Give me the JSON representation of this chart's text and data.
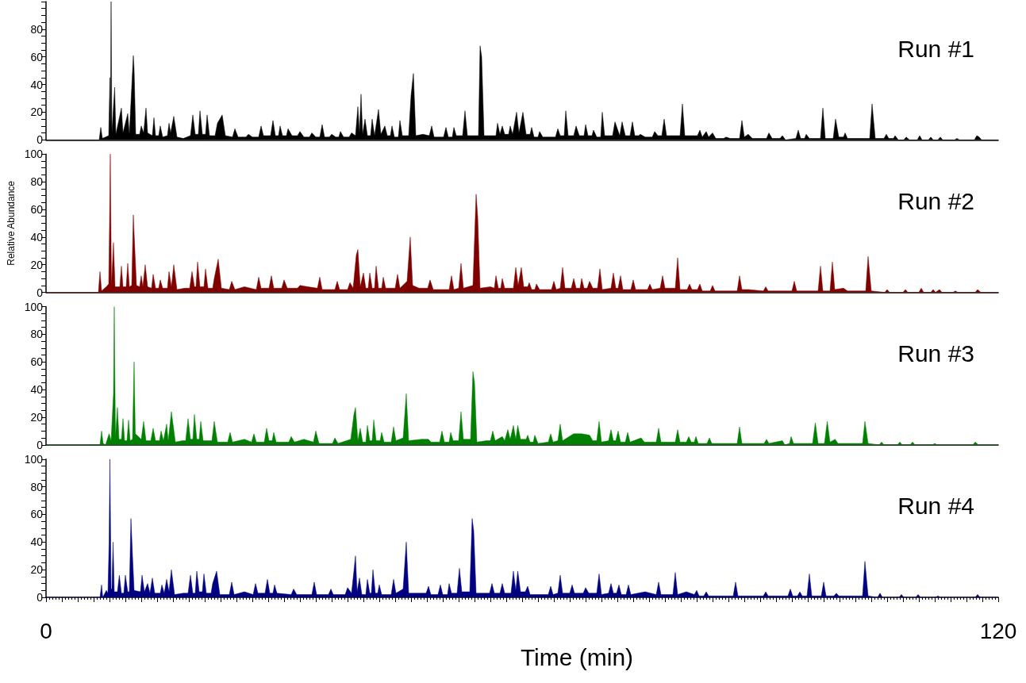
{
  "chart_data": [
    {
      "type": "area",
      "xlim": [
        0,
        120
      ],
      "ylim": [
        0,
        100
      ],
      "tick_labels": "y",
      "yticks": [
        0,
        {
          "value": 5,
          "label": null
        },
        {
          "value": 10,
          "label": null
        },
        {
          "value": 15,
          "label": null
        },
        20,
        {
          "value": 25,
          "label": null
        },
        {
          "value": 30,
          "label": null
        },
        {
          "value": 35,
          "label": null
        },
        40,
        {
          "value": 45,
          "label": null
        },
        {
          "value": 50,
          "label": null
        },
        {
          "value": 55,
          "label": null
        },
        60,
        {
          "value": 65,
          "label": null
        },
        {
          "value": 70,
          "label": null
        },
        {
          "value": 75,
          "label": null
        },
        80,
        {
          "value": 85,
          "label": null
        },
        {
          "value": 90,
          "label": null
        },
        {
          "value": 95,
          "label": null
        },
        {
          "value": 100,
          "label": null
        }
      ],
      "series": [
        {
          "name": "Run #1",
          "color": "#000000",
          "x": [
            0,
            6.7,
            6.9,
            7.1,
            7.9,
            8.05,
            8.12,
            8.2,
            8.3,
            8.65,
            8.8,
            9.5,
            9.7,
            10.3,
            10.5,
            11.0,
            11.1,
            11.3,
            11.8,
            12.0,
            12.3,
            12.6,
            12.8,
            13.4,
            13.6,
            13.8,
            14.2,
            14.4,
            14.7,
            15.3,
            15.5,
            15.7,
            16.1,
            16.5,
            17.3,
            18.2,
            18.5,
            18.8,
            19.2,
            19.4,
            19.7,
            20.1,
            20.3,
            20.6,
            21.3,
            21.6,
            22.2,
            22.6,
            23.5,
            23.8,
            24.2,
            25.2,
            25.5,
            26.0,
            26.8,
            27.1,
            27.4,
            28.3,
            28.6,
            28.9,
            29.3,
            29.5,
            29.8,
            30.3,
            30.5,
            31.0,
            31.7,
            32.0,
            32.5,
            33.2,
            33.5,
            34.0,
            34.5,
            34.8,
            35.1,
            35.7,
            36.0,
            36.5,
            36.9,
            37.1,
            37.5,
            38.2,
            38.5,
            39.0,
            39.3,
            39.5,
            39.7,
            39.9,
            40.2,
            40.5,
            40.9,
            41.1,
            41.4,
            41.9,
            42.2,
            42.7,
            43.0,
            43.4,
            43.6,
            43.9,
            44.4,
            44.6,
            44.9,
            45.7,
            46.0,
            46.3,
            46.6,
            47.5,
            48.3,
            48.6,
            48.9,
            50.1,
            50.4,
            50.7,
            51.2,
            51.4,
            51.7,
            52.5,
            52.8,
            53.1,
            54.0,
            54.5,
            54.7,
            54.9,
            55.2,
            56.2,
            56.7,
            56.9,
            57.2,
            57.5,
            57.8,
            58.3,
            58.5,
            58.8,
            59.3,
            59.6,
            60.1,
            60.5,
            61.0,
            61.2,
            61.5,
            62.0,
            62.2,
            62.6,
            64.2,
            64.5,
            64.8,
            65.3,
            65.5,
            65.8,
            66.5,
            66.8,
            67.2,
            67.8,
            68.0,
            68.3,
            68.8,
            69.0,
            69.4,
            69.9,
            70.1,
            70.4,
            71.4,
            71.7,
            72.3,
            72.6,
            73.0,
            73.6,
            73.9,
            74.2,
            74.7,
            74.9,
            75.5,
            76.4,
            76.7,
            77.1,
            77.6,
            77.9,
            78.2,
            79.9,
            80.2,
            80.5,
            82.1,
            82.4,
            82.7,
            83.2,
            83.5,
            84.0,
            84.4,
            85.4,
            85.7,
            86.2,
            87.4,
            87.7,
            88.0,
            88.5,
            89.0,
            90.8,
            91.1,
            91.5,
            92.5,
            92.8,
            93.2,
            94.5,
            94.8,
            95.1,
            95.6,
            95.8,
            96.2,
            97.6,
            97.9,
            98.2,
            99.2,
            99.5,
            99.9,
            100.5,
            100.7,
            101.0,
            103.8,
            104.1,
            104.5,
            105.6,
            105.9,
            106.2,
            106.8,
            107.0,
            107.4,
            108.1,
            108.4,
            108.8,
            109.8,
            110.1,
            110.4,
            111.2,
            111.5,
            111.8,
            112.4,
            112.7,
            113.0,
            114.5,
            114.8,
            115.1,
            117.0,
            117.3,
            117.6,
            117.9,
            120
          ],
          "values": [
            0,
            0,
            9,
            1,
            3,
            45,
            8,
            100,
            5,
            38,
            4,
            23,
            5,
            19,
            4,
            61,
            51,
            4,
            4,
            10,
            5,
            23,
            5,
            3,
            16,
            3,
            3,
            10,
            2,
            3,
            12,
            5,
            17,
            2,
            1,
            3,
            18,
            4,
            4,
            21,
            4,
            4,
            18,
            3,
            3,
            12,
            18,
            3,
            2,
            8,
            2,
            2,
            4,
            2,
            2,
            10,
            3,
            3,
            14,
            3,
            3,
            10,
            3,
            3,
            8,
            3,
            3,
            6,
            2,
            2,
            5,
            2,
            2,
            11,
            2,
            2,
            4,
            2,
            2,
            6,
            2,
            2,
            5,
            3,
            24,
            5,
            33,
            4,
            15,
            3,
            3,
            15,
            3,
            22,
            4,
            10,
            3,
            3,
            10,
            2,
            2,
            14,
            3,
            3,
            32,
            48,
            3,
            4,
            3,
            10,
            2,
            2,
            9,
            2,
            2,
            9,
            3,
            3,
            21,
            3,
            3,
            3,
            68,
            60,
            3,
            3,
            3,
            12,
            4,
            10,
            4,
            4,
            10,
            4,
            20,
            5,
            20,
            4,
            4,
            9,
            2,
            2,
            6,
            2,
            2,
            8,
            3,
            3,
            21,
            3,
            3,
            10,
            3,
            3,
            11,
            3,
            3,
            7,
            2,
            2,
            20,
            3,
            3,
            13,
            3,
            13,
            3,
            3,
            13,
            3,
            3,
            4,
            2,
            2,
            6,
            3,
            3,
            15,
            3,
            3,
            26,
            3,
            3,
            7,
            2,
            6,
            2,
            5,
            1,
            1,
            2,
            1,
            1,
            14,
            2,
            4,
            1,
            1,
            5,
            1,
            1,
            3,
            0,
            1,
            7,
            1,
            1,
            4,
            1,
            1,
            23,
            1,
            1,
            15,
            2,
            2,
            5,
            1,
            1,
            26,
            1,
            1,
            4,
            1,
            1,
            3,
            0,
            0,
            2,
            0,
            0,
            3,
            0,
            0,
            2,
            0,
            0,
            2,
            0,
            0,
            1,
            0,
            0,
            3,
            2,
            0,
            0
          ]
        }
      ]
    },
    {
      "type": "area",
      "xlim": [
        0,
        120
      ],
      "ylim": [
        0,
        100
      ],
      "tick_labels": "y",
      "ylabel": "Relative Abundance",
      "yticks": [
        0,
        {
          "value": 5,
          "label": null
        },
        {
          "value": 10,
          "label": null
        },
        {
          "value": 15,
          "label": null
        },
        20,
        {
          "value": 25,
          "label": null
        },
        {
          "value": 30,
          "label": null
        },
        {
          "value": 35,
          "label": null
        },
        40,
        {
          "value": 45,
          "label": null
        },
        {
          "value": 50,
          "label": null
        },
        {
          "value": 55,
          "label": null
        },
        60,
        {
          "value": 65,
          "label": null
        },
        {
          "value": 70,
          "label": null
        },
        {
          "value": 75,
          "label": null
        },
        80,
        {
          "value": 85,
          "label": null
        },
        {
          "value": 90,
          "label": null
        },
        {
          "value": 95,
          "label": null
        },
        100
      ],
      "series": [
        {
          "name": "Run #2",
          "color": "#800000",
          "x": [
            0,
            6.6,
            6.8,
            7.0,
            7.6,
            7.9,
            8.0,
            8.1,
            8.25,
            8.5,
            8.7,
            9.3,
            9.5,
            9.7,
            10.1,
            10.3,
            10.5,
            10.8,
            11.0,
            11.2,
            11.4,
            11.8,
            12.0,
            12.2,
            12.5,
            12.8,
            13.3,
            13.5,
            13.8,
            14.2,
            14.4,
            14.7,
            15.3,
            15.5,
            15.8,
            16.1,
            16.5,
            17.5,
            18.1,
            18.4,
            18.7,
            18.9,
            19.1,
            19.4,
            19.9,
            20.1,
            20.4,
            21.0,
            21.2,
            21.7,
            22.1,
            23.1,
            23.4,
            23.8,
            25.0,
            26.5,
            26.8,
            27.1,
            28.1,
            28.4,
            28.7,
            29.7,
            30.0,
            30.4,
            31.7,
            32.0,
            33.0,
            34.2,
            34.5,
            34.8,
            36.4,
            36.7,
            37.0,
            38.0,
            38.3,
            38.7,
            39.1,
            39.3,
            39.6,
            40.0,
            40.3,
            40.6,
            40.8,
            41.1,
            41.4,
            41.6,
            41.9,
            42.3,
            42.5,
            42.8,
            44.0,
            44.3,
            44.6,
            45.5,
            45.9,
            46.2,
            47.0,
            48.1,
            48.4,
            48.8,
            50.8,
            51.1,
            51.4,
            52.0,
            52.3,
            52.6,
            53.8,
            54.2,
            54.4,
            54.7,
            56.0,
            56.5,
            56.7,
            57.0,
            57.3,
            57.5,
            57.8,
            58.9,
            59.2,
            59.5,
            59.9,
            60.2,
            60.7,
            60.9,
            61.2,
            61.6,
            61.8,
            62.2,
            63.7,
            64.0,
            64.3,
            64.8,
            65.1,
            65.4,
            66.2,
            66.5,
            66.8,
            67.3,
            67.5,
            67.8,
            68.2,
            68.5,
            68.9,
            69.5,
            69.8,
            70.1,
            71.2,
            71.5,
            71.8,
            72.1,
            72.4,
            72.7,
            73.7,
            74.0,
            74.3,
            75.8,
            76.1,
            76.4,
            77.4,
            77.7,
            78.0,
            79.3,
            79.6,
            79.9,
            80.8,
            81.1,
            81.4,
            82.1,
            82.4,
            82.7,
            83.7,
            84.0,
            84.3,
            87.1,
            87.4,
            87.7,
            88.5,
            90.4,
            90.7,
            91.0,
            94.0,
            94.3,
            94.6,
            97.3,
            97.6,
            97.9,
            98.8,
            99.1,
            99.4,
            100.5,
            101.0,
            103.3,
            103.6,
            104.0,
            105.7,
            106.0,
            106.3,
            108.0,
            108.3,
            108.6,
            110.0,
            110.3,
            110.6,
            111.5,
            111.8,
            112.1,
            112.6,
            112.9,
            114.3,
            114.6,
            114.9,
            117.1,
            117.4,
            117.8,
            120
          ],
          "values": [
            0,
            0,
            15,
            1,
            4,
            6,
            48,
            100,
            5,
            36,
            4,
            4,
            19,
            4,
            4,
            21,
            4,
            5,
            56,
            30,
            5,
            4,
            12,
            4,
            20,
            4,
            3,
            13,
            3,
            3,
            9,
            3,
            3,
            15,
            4,
            20,
            2,
            3,
            3,
            15,
            4,
            4,
            22,
            4,
            4,
            17,
            3,
            3,
            10,
            24,
            3,
            2,
            8,
            2,
            4,
            2,
            11,
            3,
            3,
            12,
            3,
            3,
            9,
            3,
            3,
            5,
            4,
            3,
            11,
            2,
            2,
            8,
            2,
            2,
            7,
            3,
            27,
            31,
            4,
            14,
            3,
            3,
            14,
            3,
            3,
            19,
            3,
            3,
            11,
            3,
            3,
            13,
            3,
            8,
            40,
            5,
            3,
            3,
            9,
            2,
            2,
            12,
            2,
            3,
            21,
            3,
            5,
            71,
            55,
            3,
            4,
            3,
            12,
            3,
            3,
            10,
            3,
            3,
            18,
            5,
            18,
            4,
            4,
            7,
            2,
            2,
            6,
            2,
            2,
            8,
            2,
            3,
            18,
            3,
            3,
            10,
            3,
            3,
            10,
            3,
            3,
            8,
            3,
            3,
            17,
            2,
            3,
            14,
            3,
            3,
            12,
            2,
            2,
            9,
            2,
            2,
            6,
            2,
            3,
            12,
            3,
            3,
            25,
            2,
            2,
            6,
            2,
            2,
            6,
            1,
            1,
            5,
            1,
            1,
            12,
            2,
            2,
            1,
            4,
            1,
            1,
            8,
            1,
            1,
            19,
            1,
            1,
            22,
            2,
            3,
            1,
            1,
            26,
            1,
            0,
            2,
            0,
            0,
            2,
            0,
            0,
            3,
            0,
            0,
            2,
            0,
            2,
            0,
            0,
            1,
            0,
            0,
            2,
            0,
            0
          ]
        }
      ]
    },
    {
      "type": "area",
      "xlim": [
        0,
        120
      ],
      "ylim": [
        0,
        100
      ],
      "tick_labels": "y",
      "yticks": [
        0,
        {
          "value": 5,
          "label": null
        },
        {
          "value": 10,
          "label": null
        },
        {
          "value": 15,
          "label": null
        },
        20,
        {
          "value": 25,
          "label": null
        },
        {
          "value": 30,
          "label": null
        },
        {
          "value": 35,
          "label": null
        },
        40,
        {
          "value": 45,
          "label": null
        },
        {
          "value": 50,
          "label": null
        },
        {
          "value": 55,
          "label": null
        },
        60,
        {
          "value": 65,
          "label": null
        },
        {
          "value": 70,
          "label": null
        },
        {
          "value": 75,
          "label": null
        },
        80,
        {
          "value": 85,
          "label": null
        },
        {
          "value": 90,
          "label": null
        },
        {
          "value": 95,
          "label": null
        },
        100
      ],
      "series": [
        {
          "name": "Run #3",
          "color": "#008000",
          "x": [
            0,
            6.8,
            7.0,
            7.2,
            7.5,
            7.95,
            8.2,
            8.5,
            8.6,
            8.75,
            9.0,
            9.2,
            9.5,
            9.7,
            9.9,
            10.2,
            10.4,
            10.6,
            10.9,
            11.1,
            11.25,
            12.0,
            12.3,
            12.6,
            13.2,
            13.5,
            13.8,
            14.3,
            14.5,
            14.8,
            15.2,
            15.4,
            15.8,
            16.3,
            17.2,
            17.6,
            17.9,
            18.2,
            18.5,
            18.7,
            19.0,
            19.3,
            19.5,
            19.8,
            20.9,
            21.2,
            21.6,
            22.9,
            23.2,
            23.5,
            25.0,
            25.9,
            26.2,
            26.5,
            27.5,
            27.8,
            28.1,
            28.5,
            28.7,
            29.0,
            30.6,
            30.9,
            31.3,
            32.5,
            33.7,
            34.0,
            34.4,
            36.1,
            36.4,
            36.8,
            38.4,
            38.8,
            39.0,
            39.3,
            39.6,
            39.9,
            40.3,
            40.5,
            40.8,
            41.1,
            41.3,
            41.6,
            42.1,
            42.3,
            42.6,
            43.5,
            43.8,
            44.1,
            45.0,
            45.4,
            45.7,
            47.3,
            48.2,
            48.5,
            49.6,
            49.9,
            50.2,
            50.8,
            51.0,
            51.3,
            52.0,
            52.3,
            52.6,
            53.5,
            53.8,
            54.0,
            54.3,
            55.5,
            56.0,
            56.3,
            56.6,
            57.5,
            57.8,
            58.2,
            58.5,
            58.9,
            59.2,
            59.45,
            59.8,
            60.5,
            60.7,
            61.0,
            61.4,
            61.6,
            62.0,
            63.3,
            63.6,
            63.9,
            64.5,
            64.8,
            65.1,
            66.5,
            67.5,
            68.5,
            68.9,
            69.4,
            69.7,
            70.0,
            70.9,
            71.2,
            71.5,
            71.8,
            72.1,
            72.4,
            73.0,
            73.3,
            73.6,
            75.0,
            75.4,
            76.9,
            77.2,
            77.5,
            79.3,
            79.6,
            79.9,
            80.7,
            81.0,
            81.3,
            81.7,
            81.9,
            82.2,
            83.3,
            83.6,
            83.9,
            87.1,
            87.4,
            87.7,
            90.5,
            90.8,
            91.1,
            92.8,
            93.1,
            93.7,
            93.9,
            94.2,
            96.6,
            96.95,
            97.3,
            98.1,
            98.45,
            98.8,
            99.45,
            99.8,
            102.9,
            103.2,
            103.6,
            105.0,
            105.3,
            105.6,
            107.3,
            107.6,
            107.9,
            108.9,
            109.2,
            109.5,
            111.7,
            112.0,
            112.3,
            116.8,
            117.1,
            117.5,
            120
          ],
          "values": [
            0,
            0,
            10,
            1,
            0,
            8,
            3,
            37,
            100,
            6,
            27,
            4,
            4,
            19,
            3,
            3,
            18,
            3,
            4,
            60,
            8,
            4,
            17,
            3,
            3,
            12,
            3,
            3,
            10,
            3,
            15,
            3,
            24,
            2,
            3,
            3,
            19,
            4,
            4,
            22,
            4,
            4,
            17,
            3,
            3,
            17,
            2,
            2,
            9,
            2,
            4,
            2,
            8,
            2,
            2,
            12,
            3,
            3,
            9,
            2,
            2,
            6,
            2,
            4,
            2,
            10,
            1,
            1,
            5,
            1,
            4,
            22,
            27,
            3,
            12,
            2,
            2,
            14,
            3,
            3,
            18,
            3,
            3,
            9,
            2,
            2,
            13,
            3,
            5,
            37,
            3,
            4,
            4,
            2,
            2,
            10,
            2,
            2,
            9,
            3,
            3,
            24,
            4,
            4,
            53,
            45,
            2,
            3,
            3,
            10,
            3,
            6,
            3,
            11,
            4,
            14,
            4,
            14,
            4,
            4,
            7,
            2,
            2,
            7,
            1,
            2,
            8,
            2,
            3,
            15,
            3,
            8,
            8,
            7,
            3,
            3,
            17,
            2,
            3,
            11,
            3,
            3,
            10,
            2,
            2,
            9,
            2,
            5,
            2,
            2,
            12,
            2,
            2,
            11,
            2,
            2,
            6,
            2,
            2,
            6,
            1,
            1,
            5,
            1,
            1,
            13,
            1,
            1,
            4,
            1,
            3,
            0,
            1,
            6,
            1,
            1,
            16,
            1,
            1,
            17,
            2,
            4,
            1,
            1,
            17,
            1,
            0,
            2,
            0,
            0,
            2,
            0,
            0,
            2,
            0,
            0,
            1,
            0,
            0,
            2,
            0,
            0
          ]
        }
      ]
    },
    {
      "type": "area",
      "xlim": [
        0,
        120
      ],
      "ylim": [
        0,
        100
      ],
      "xlabel": "Time (min)",
      "xticks": [
        0,
        {
          "value": 2,
          "label": null
        },
        {
          "value": 4,
          "label": null
        },
        {
          "value": 6,
          "label": null
        },
        {
          "value": 8,
          "label": null
        },
        {
          "value": 10,
          "label": null
        },
        {
          "value": 12,
          "label": null
        },
        {
          "value": 14,
          "label": null
        },
        {
          "value": 16,
          "label": null
        },
        {
          "value": 18,
          "label": null
        },
        {
          "value": 20,
          "label": null
        },
        {
          "value": 22,
          "label": null
        },
        {
          "value": 24,
          "label": null
        },
        {
          "value": 26,
          "label": null
        },
        {
          "value": 28,
          "label": null
        },
        {
          "value": 30,
          "label": null
        },
        {
          "value": 32,
          "label": null
        },
        {
          "value": 34,
          "label": null
        },
        {
          "value": 36,
          "label": null
        },
        {
          "value": 38,
          "label": null
        },
        {
          "value": 40,
          "label": null
        },
        {
          "value": 42,
          "label": null
        },
        {
          "value": 44,
          "label": null
        },
        {
          "value": 46,
          "label": null
        },
        {
          "value": 48,
          "label": null
        },
        {
          "value": 50,
          "label": null
        },
        {
          "value": 52,
          "label": null
        },
        {
          "value": 54,
          "label": null
        },
        {
          "value": 56,
          "label": null
        },
        {
          "value": 58,
          "label": null
        },
        {
          "value": 60,
          "label": null
        },
        {
          "value": 62,
          "label": null
        },
        {
          "value": 64,
          "label": null
        },
        {
          "value": 66,
          "label": null
        },
        {
          "value": 68,
          "label": null
        },
        {
          "value": 70,
          "label": null
        },
        {
          "value": 72,
          "label": null
        },
        {
          "value": 74,
          "label": null
        },
        {
          "value": 76,
          "label": null
        },
        {
          "value": 78,
          "label": null
        },
        {
          "value": 80,
          "label": null
        },
        {
          "value": 82,
          "label": null
        },
        {
          "value": 84,
          "label": null
        },
        {
          "value": 86,
          "label": null
        },
        {
          "value": 88,
          "label": null
        },
        {
          "value": 90,
          "label": null
        },
        {
          "value": 92,
          "label": null
        },
        {
          "value": 94,
          "label": null
        },
        {
          "value": 96,
          "label": null
        },
        {
          "value": 98,
          "label": null
        },
        {
          "value": 100,
          "label": null
        },
        {
          "value": 102,
          "label": null
        },
        {
          "value": 104,
          "label": null
        },
        {
          "value": 106,
          "label": null
        },
        {
          "value": 108,
          "label": null
        },
        {
          "value": 110,
          "label": null
        },
        {
          "value": 112,
          "label": null
        },
        {
          "value": 114,
          "label": null
        },
        {
          "value": 116,
          "label": null
        },
        {
          "value": 118,
          "label": null
        },
        120
      ],
      "yticks": [
        0,
        {
          "value": 5,
          "label": null
        },
        {
          "value": 10,
          "label": null
        },
        {
          "value": 15,
          "label": null
        },
        20,
        {
          "value": 25,
          "label": null
        },
        {
          "value": 30,
          "label": null
        },
        {
          "value": 35,
          "label": null
        },
        40,
        {
          "value": 45,
          "label": null
        },
        {
          "value": 50,
          "label": null
        },
        {
          "value": 55,
          "label": null
        },
        60,
        {
          "value": 65,
          "label": null
        },
        {
          "value": 70,
          "label": null
        },
        {
          "value": 75,
          "label": null
        },
        80,
        {
          "value": 85,
          "label": null
        },
        {
          "value": 90,
          "label": null
        },
        {
          "value": 95,
          "label": null
        },
        100
      ],
      "series": [
        {
          "name": "Run #4",
          "color": "#000080",
          "x": [
            0,
            6.8,
            7.0,
            7.15,
            7.6,
            7.8,
            7.95,
            8.05,
            8.2,
            8.3,
            8.45,
            8.6,
            9.0,
            9.24,
            9.5,
            9.8,
            10.0,
            10.3,
            10.5,
            10.7,
            10.9,
            11.1,
            11.9,
            12.1,
            12.4,
            12.8,
            13.1,
            13.4,
            13.7,
            14.4,
            14.6,
            14.9,
            15.2,
            15.5,
            15.8,
            16.2,
            17.3,
            17.9,
            18.2,
            18.5,
            18.8,
            19.0,
            19.3,
            19.7,
            19.9,
            20.2,
            20.8,
            21.0,
            21.5,
            21.9,
            23.1,
            23.4,
            23.7,
            25.0,
            26.1,
            26.4,
            26.7,
            27.6,
            27.9,
            28.2,
            28.6,
            28.8,
            29.1,
            30.9,
            31.2,
            31.6,
            33.5,
            33.8,
            34.1,
            35.6,
            35.9,
            36.2,
            37.7,
            38.0,
            38.5,
            38.8,
            39.0,
            39.2,
            39.5,
            39.8,
            40.3,
            40.5,
            40.8,
            41.0,
            41.2,
            41.5,
            41.8,
            42.0,
            42.3,
            43.5,
            43.8,
            44.1,
            45.0,
            45.4,
            45.7,
            47.0,
            47.9,
            48.2,
            48.5,
            49.4,
            49.7,
            50.0,
            50.6,
            50.8,
            51.1,
            51.8,
            52.1,
            52.4,
            53.4,
            53.7,
            53.9,
            54.2,
            55.5,
            55.9,
            56.2,
            56.5,
            57.2,
            57.5,
            57.8,
            58.6,
            58.9,
            59.2,
            59.45,
            59.8,
            60.4,
            60.7,
            61.0,
            63.3,
            63.6,
            63.9,
            64.5,
            64.8,
            65.1,
            66.0,
            66.3,
            66.6,
            67.7,
            68.0,
            68.4,
            69.4,
            69.7,
            70.0,
            70.9,
            71.2,
            71.5,
            71.9,
            72.2,
            72.5,
            73.1,
            73.4,
            73.7,
            75.5,
            76.9,
            77.2,
            77.5,
            79.0,
            79.3,
            79.6,
            80.7,
            81.7,
            82.0,
            82.3,
            82.9,
            83.2,
            83.5,
            86.6,
            86.9,
            87.2,
            90.4,
            90.7,
            91.0,
            93.5,
            93.8,
            94.1,
            94.7,
            95.0,
            95.3,
            95.9,
            96.2,
            96.5,
            97.7,
            98.0,
            98.3,
            99.3,
            99.6,
            99.9,
            102.9,
            103.2,
            103.6,
            104.8,
            105.1,
            105.4,
            107.5,
            107.8,
            108.1,
            109.6,
            109.9,
            110.2,
            112.1,
            112.4,
            112.7,
            117.1,
            117.4,
            117.7,
            120
          ],
          "values": [
            0,
            0,
            9,
            0,
            5,
            3,
            40,
            100,
            6,
            6,
            40,
            4,
            4,
            16,
            3,
            3,
            16,
            4,
            4,
            57,
            30,
            5,
            4,
            16,
            4,
            10,
            3,
            14,
            3,
            3,
            9,
            3,
            13,
            4,
            20,
            2,
            3,
            3,
            16,
            3,
            3,
            19,
            4,
            4,
            17,
            3,
            3,
            10,
            19,
            2,
            2,
            11,
            2,
            4,
            2,
            10,
            3,
            3,
            13,
            3,
            3,
            9,
            3,
            2,
            6,
            2,
            2,
            11,
            2,
            2,
            6,
            2,
            2,
            7,
            3,
            19,
            30,
            4,
            14,
            2,
            2,
            13,
            3,
            3,
            20,
            3,
            3,
            9,
            2,
            2,
            13,
            3,
            6,
            40,
            3,
            3,
            3,
            8,
            2,
            2,
            9,
            2,
            2,
            10,
            3,
            3,
            21,
            4,
            4,
            57,
            48,
            3,
            3,
            3,
            10,
            3,
            3,
            10,
            3,
            3,
            19,
            5,
            19,
            4,
            4,
            8,
            2,
            2,
            8,
            2,
            3,
            16,
            3,
            3,
            9,
            3,
            3,
            7,
            3,
            3,
            17,
            2,
            3,
            10,
            3,
            3,
            9,
            2,
            2,
            9,
            2,
            4,
            2,
            11,
            2,
            2,
            18,
            2,
            4,
            2,
            5,
            1,
            1,
            4,
            1,
            1,
            11,
            1,
            1,
            4,
            1,
            1,
            6,
            1,
            1,
            4,
            1,
            1,
            17,
            1,
            1,
            11,
            1,
            1,
            3,
            1,
            1,
            26,
            1,
            0,
            3,
            0,
            0,
            2,
            0,
            0,
            2,
            0,
            0,
            1,
            0,
            0,
            2,
            0,
            0
          ]
        }
      ]
    }
  ]
}
